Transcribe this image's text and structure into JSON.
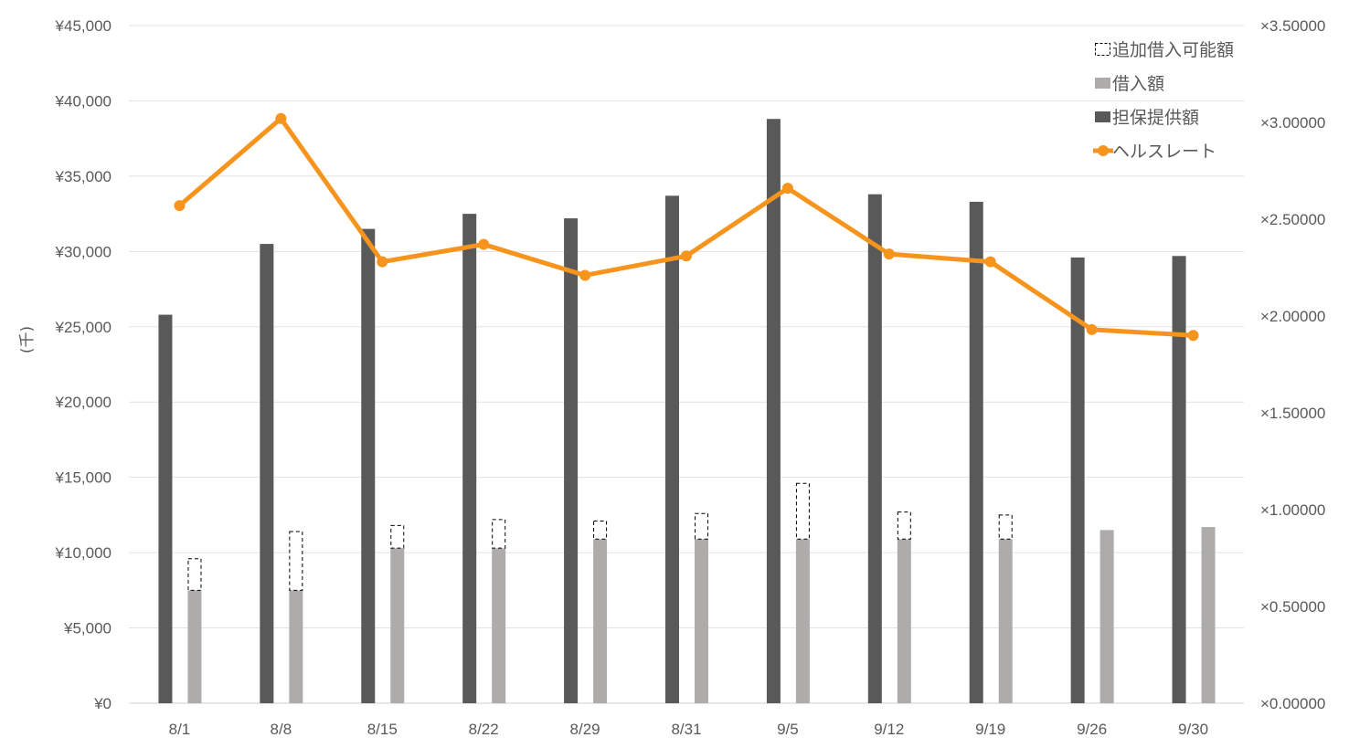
{
  "chart_data": {
    "type": "bar",
    "categories": [
      "8/1",
      "8/8",
      "8/15",
      "8/22",
      "8/29",
      "8/31",
      "9/5",
      "9/12",
      "9/19",
      "9/26",
      "9/30"
    ],
    "y_left": {
      "label": "(千)",
      "range": [
        0,
        45000
      ],
      "ticks": [
        0,
        5000,
        10000,
        15000,
        20000,
        25000,
        30000,
        35000,
        40000,
        45000
      ],
      "tick_labels": [
        "¥0",
        "¥5,000",
        "¥10,000",
        "¥15,000",
        "¥20,000",
        "¥25,000",
        "¥30,000",
        "¥35,000",
        "¥40,000",
        "¥45,000"
      ]
    },
    "y_right": {
      "range": [
        0,
        3.5
      ],
      "ticks": [
        0,
        0.5,
        1.0,
        1.5,
        2.0,
        2.5,
        3.0,
        3.5
      ],
      "tick_labels": [
        "×0.00000",
        "×0.50000",
        "×1.00000",
        "×1.50000",
        "×2.00000",
        "×2.50000",
        "×3.00000",
        "×3.50000"
      ]
    },
    "series": [
      {
        "name": "担保提供額",
        "kind": "bar",
        "axis": "left",
        "color": "#595959",
        "values": [
          25800,
          30500,
          31500,
          32500,
          32200,
          33700,
          38800,
          33800,
          33300,
          29600,
          29700
        ]
      },
      {
        "name": "借入額",
        "kind": "stacked-bar-base",
        "axis": "left",
        "color": "#aeabab",
        "values": [
          7500,
          7500,
          10300,
          10300,
          10900,
          10900,
          10900,
          10900,
          10900,
          11500,
          11700
        ]
      },
      {
        "name": "追加借入可能額",
        "kind": "stacked-bar-dashed",
        "axis": "left",
        "color": "#000000",
        "values": [
          2100,
          3900,
          1500,
          1900,
          1200,
          1700,
          3700,
          1800,
          1600,
          0,
          0
        ]
      },
      {
        "name": "ヘルスレート",
        "kind": "line",
        "axis": "right",
        "color": "#f7941d",
        "values": [
          2.57,
          3.02,
          2.28,
          2.37,
          2.21,
          2.31,
          2.66,
          2.32,
          2.28,
          1.93,
          1.9
        ]
      }
    ],
    "legend": {
      "position": "top-right",
      "items": [
        "追加借入可能額",
        "借入額",
        "担保提供額",
        "ヘルスレート"
      ]
    },
    "grid": true
  }
}
